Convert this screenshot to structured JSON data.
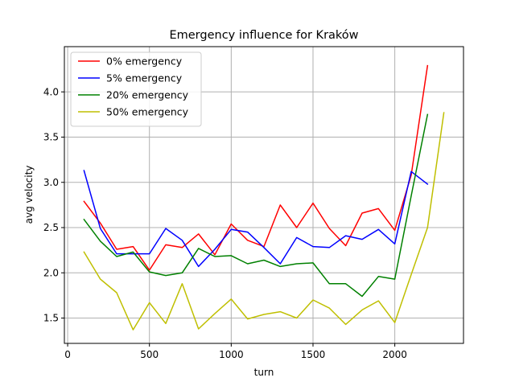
{
  "chart_data": {
    "type": "line",
    "title": "Emergency influence for Kraków",
    "xlabel": "turn",
    "ylabel": "avg velocity",
    "xlim": [
      -20,
      2420
    ],
    "ylim": [
      1.22,
      4.5
    ],
    "xticks": [
      0,
      500,
      1000,
      1500,
      2000
    ],
    "yticks": [
      1.5,
      2.0,
      2.5,
      3.0,
      3.5,
      4.0
    ],
    "xtick_labels": [
      "0",
      "500",
      "1000",
      "1500",
      "2000"
    ],
    "ytick_labels": [
      "1.5",
      "2.0",
      "2.5",
      "3.0",
      "3.5",
      "4.0"
    ],
    "grid": true,
    "legend_position": "top-left",
    "series": [
      {
        "name": "0% emergency",
        "color": "#ff0000",
        "x": [
          100,
          200,
          300,
          400,
          500,
          600,
          700,
          800,
          900,
          1000,
          1100,
          1200,
          1300,
          1400,
          1500,
          1600,
          1700,
          1800,
          1900,
          2000,
          2100,
          2200
        ],
        "y": [
          2.79,
          2.55,
          2.26,
          2.29,
          2.03,
          2.31,
          2.28,
          2.43,
          2.2,
          2.54,
          2.36,
          2.29,
          2.75,
          2.5,
          2.77,
          2.49,
          2.3,
          2.66,
          2.71,
          2.47,
          3.08,
          4.29
        ]
      },
      {
        "name": "5% emergency",
        "color": "#0000ff",
        "x": [
          100,
          200,
          300,
          400,
          500,
          600,
          700,
          800,
          900,
          1000,
          1100,
          1200,
          1300,
          1400,
          1500,
          1600,
          1700,
          1800,
          1900,
          2000,
          2100,
          2200
        ],
        "y": [
          3.13,
          2.49,
          2.21,
          2.21,
          2.21,
          2.49,
          2.36,
          2.07,
          2.26,
          2.48,
          2.45,
          2.28,
          2.1,
          2.39,
          2.29,
          2.28,
          2.41,
          2.37,
          2.48,
          2.32,
          3.12,
          2.98
        ]
      },
      {
        "name": "20% emergency",
        "color": "#008000",
        "x": [
          100,
          200,
          300,
          400,
          500,
          600,
          700,
          800,
          900,
          1000,
          1100,
          1200,
          1300,
          1400,
          1500,
          1600,
          1700,
          1800,
          1900,
          2000,
          2100,
          2200
        ],
        "y": [
          2.59,
          2.35,
          2.18,
          2.23,
          2.01,
          1.97,
          2.0,
          2.27,
          2.18,
          2.19,
          2.1,
          2.14,
          2.07,
          2.1,
          2.11,
          1.88,
          1.88,
          1.74,
          1.96,
          1.93,
          2.85,
          3.75
        ]
      },
      {
        "name": "50% emergency",
        "color": "#bfbf00",
        "x": [
          100,
          200,
          300,
          400,
          500,
          600,
          700,
          800,
          900,
          1000,
          1100,
          1200,
          1300,
          1400,
          1500,
          1600,
          1700,
          1800,
          1900,
          2000,
          2100,
          2200,
          2300
        ],
        "y": [
          2.23,
          1.93,
          1.78,
          1.37,
          1.67,
          1.44,
          1.88,
          1.38,
          1.55,
          1.71,
          1.49,
          1.54,
          1.57,
          1.5,
          1.7,
          1.61,
          1.43,
          1.59,
          1.69,
          1.45,
          1.98,
          2.5,
          3.77
        ]
      }
    ]
  }
}
